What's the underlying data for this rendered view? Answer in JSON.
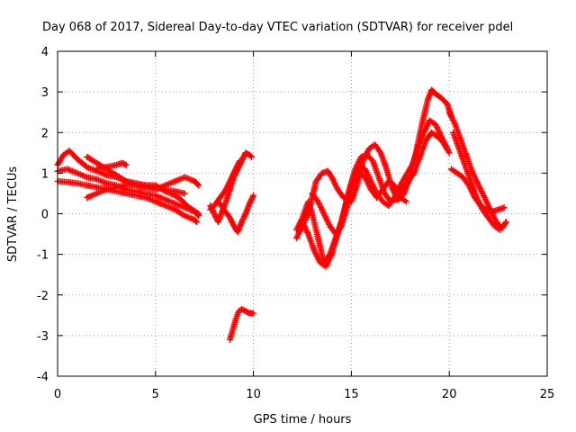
{
  "chart_data": {
    "type": "scatter",
    "title": "Day 068 of 2017, Sidereal Day-to-day VTEC variation (SDTVAR) for receiver pdel",
    "xlabel": "GPS time / hours",
    "ylabel": "SDTVAR / TECUs",
    "xlim": [
      0,
      25
    ],
    "ylim": [
      -4,
      4
    ],
    "xticks": [
      0,
      5,
      10,
      15,
      20,
      25
    ],
    "yticks": [
      -4,
      -3,
      -2,
      -1,
      0,
      1,
      2,
      3,
      4
    ],
    "grid": true,
    "marker": "+",
    "color": "#ff0000",
    "series": [
      {
        "name": "trace-1",
        "points": [
          [
            0.0,
            1.2
          ],
          [
            0.3,
            1.45
          ],
          [
            0.6,
            1.55
          ],
          [
            1.0,
            1.35
          ],
          [
            1.5,
            1.15
          ],
          [
            2.0,
            1.05
          ],
          [
            2.5,
            0.95
          ],
          [
            3.0,
            0.9
          ],
          [
            3.5,
            0.8
          ],
          [
            4.0,
            0.75
          ],
          [
            4.5,
            0.7
          ],
          [
            5.0,
            0.7
          ],
          [
            5.5,
            0.55
          ],
          [
            6.0,
            0.45
          ],
          [
            6.3,
            0.35
          ],
          [
            6.6,
            0.2
          ],
          [
            6.9,
            0.1
          ],
          [
            7.2,
            0.0
          ]
        ]
      },
      {
        "name": "trace-2",
        "points": [
          [
            0.0,
            1.05
          ],
          [
            0.5,
            1.1
          ],
          [
            1.0,
            1.0
          ],
          [
            1.5,
            0.9
          ],
          [
            2.0,
            0.85
          ],
          [
            2.5,
            0.75
          ],
          [
            3.0,
            0.7
          ],
          [
            3.5,
            0.6
          ],
          [
            4.0,
            0.55
          ],
          [
            4.5,
            0.5
          ],
          [
            5.0,
            0.45
          ],
          [
            5.5,
            0.35
          ],
          [
            6.0,
            0.25
          ],
          [
            6.5,
            0.15
          ],
          [
            7.0,
            0.05
          ],
          [
            7.2,
            -0.05
          ]
        ]
      },
      {
        "name": "trace-3",
        "points": [
          [
            0.0,
            0.8
          ],
          [
            0.5,
            0.78
          ],
          [
            1.0,
            0.75
          ],
          [
            1.5,
            0.7
          ],
          [
            2.0,
            0.65
          ],
          [
            2.5,
            0.6
          ],
          [
            3.0,
            0.55
          ],
          [
            3.5,
            0.5
          ],
          [
            4.0,
            0.45
          ],
          [
            4.5,
            0.4
          ],
          [
            5.0,
            0.3
          ],
          [
            5.5,
            0.2
          ],
          [
            6.0,
            0.1
          ],
          [
            6.5,
            -0.05
          ],
          [
            7.0,
            -0.15
          ],
          [
            7.1,
            -0.2
          ]
        ]
      },
      {
        "name": "trace-4",
        "points": [
          [
            1.5,
            1.4
          ],
          [
            2.0,
            1.25
          ],
          [
            2.5,
            1.1
          ],
          [
            3.0,
            0.95
          ],
          [
            3.5,
            0.8
          ],
          [
            4.0,
            0.7
          ],
          [
            4.5,
            0.65
          ],
          [
            5.0,
            0.6
          ],
          [
            5.5,
            0.7
          ],
          [
            6.0,
            0.8
          ],
          [
            6.5,
            0.9
          ],
          [
            7.0,
            0.8
          ],
          [
            7.2,
            0.7
          ]
        ]
      },
      {
        "name": "trace-5",
        "points": [
          [
            1.5,
            0.4
          ],
          [
            2.0,
            0.5
          ],
          [
            2.5,
            0.6
          ],
          [
            3.0,
            0.65
          ],
          [
            3.5,
            0.7
          ],
          [
            4.0,
            0.72
          ],
          [
            4.5,
            0.68
          ],
          [
            5.0,
            0.65
          ],
          [
            5.5,
            0.6
          ],
          [
            6.0,
            0.55
          ],
          [
            6.5,
            0.5
          ]
        ]
      },
      {
        "name": "trace-6",
        "points": [
          [
            2.0,
            1.1
          ],
          [
            2.5,
            1.15
          ],
          [
            3.0,
            1.2
          ],
          [
            3.3,
            1.25
          ],
          [
            3.5,
            1.2
          ]
        ]
      },
      {
        "name": "trace-7",
        "points": [
          [
            7.8,
            0.2
          ],
          [
            8.0,
            0.0
          ],
          [
            8.2,
            -0.2
          ],
          [
            8.4,
            0.05
          ],
          [
            8.6,
            0.3
          ],
          [
            8.8,
            0.6
          ],
          [
            9.0,
            0.9
          ],
          [
            9.2,
            1.1
          ],
          [
            9.4,
            1.3
          ],
          [
            9.6,
            1.5
          ],
          [
            9.8,
            1.45
          ],
          [
            9.9,
            1.4
          ]
        ]
      },
      {
        "name": "trace-8",
        "points": [
          [
            7.8,
            0.1
          ],
          [
            8.0,
            0.2
          ],
          [
            8.3,
            0.4
          ],
          [
            8.6,
            0.6
          ],
          [
            8.8,
            0.8
          ],
          [
            9.0,
            1.0
          ],
          [
            9.2,
            1.2
          ],
          [
            9.3,
            1.3
          ]
        ]
      },
      {
        "name": "trace-9",
        "points": [
          [
            8.2,
            0.3
          ],
          [
            8.5,
            0.1
          ],
          [
            8.8,
            -0.1
          ],
          [
            9.0,
            -0.3
          ],
          [
            9.2,
            -0.45
          ],
          [
            9.4,
            -0.2
          ],
          [
            9.6,
            0.0
          ],
          [
            9.8,
            0.25
          ],
          [
            10.0,
            0.45
          ]
        ]
      },
      {
        "name": "trace-10",
        "points": [
          [
            8.8,
            -3.1
          ],
          [
            8.95,
            -2.85
          ],
          [
            9.1,
            -2.6
          ],
          [
            9.25,
            -2.4
          ],
          [
            9.4,
            -2.35
          ],
          [
            9.6,
            -2.4
          ],
          [
            9.8,
            -2.45
          ],
          [
            10.0,
            -2.45
          ]
        ]
      },
      {
        "name": "trace-11",
        "points": [
          [
            12.2,
            -0.6
          ],
          [
            12.5,
            -0.3
          ],
          [
            12.8,
            0.0
          ],
          [
            13.0,
            0.4
          ],
          [
            13.2,
            0.8
          ],
          [
            13.5,
            1.0
          ],
          [
            13.8,
            1.05
          ],
          [
            14.0,
            0.9
          ],
          [
            14.3,
            0.6
          ],
          [
            14.6,
            0.4
          ],
          [
            15.0,
            0.3
          ],
          [
            15.3,
            0.7
          ],
          [
            15.6,
            1.3
          ],
          [
            15.9,
            1.6
          ],
          [
            16.2,
            1.7
          ],
          [
            16.5,
            1.5
          ],
          [
            16.8,
            1.1
          ],
          [
            17.1,
            0.6
          ],
          [
            17.4,
            0.35
          ],
          [
            17.7,
            0.5
          ],
          [
            18.0,
            0.9
          ],
          [
            18.3,
            1.5
          ],
          [
            18.6,
            2.2
          ],
          [
            18.9,
            2.8
          ],
          [
            19.1,
            3.05
          ],
          [
            19.3,
            2.95
          ],
          [
            19.6,
            2.85
          ],
          [
            19.9,
            2.7
          ],
          [
            20.1,
            2.4
          ]
        ]
      },
      {
        "name": "trace-12",
        "points": [
          [
            12.2,
            -0.4
          ],
          [
            12.5,
            -0.1
          ],
          [
            12.8,
            0.3
          ],
          [
            13.0,
            0.0
          ],
          [
            13.3,
            -0.6
          ],
          [
            13.6,
            -1.2
          ],
          [
            13.9,
            -1.0
          ],
          [
            14.2,
            -0.6
          ],
          [
            14.5,
            -0.2
          ],
          [
            14.8,
            0.4
          ],
          [
            15.1,
            0.9
          ],
          [
            15.4,
            1.2
          ],
          [
            15.7,
            1.1
          ],
          [
            16.0,
            0.8
          ],
          [
            16.3,
            0.5
          ],
          [
            16.6,
            0.3
          ],
          [
            16.9,
            0.2
          ],
          [
            17.2,
            0.4
          ],
          [
            17.5,
            0.7
          ],
          [
            17.8,
            0.95
          ],
          [
            18.1,
            1.2
          ],
          [
            18.4,
            1.6
          ],
          [
            18.7,
            2.0
          ],
          [
            19.0,
            2.3
          ],
          [
            19.3,
            2.2
          ],
          [
            19.6,
            1.9
          ],
          [
            19.9,
            1.6
          ]
        ]
      },
      {
        "name": "trace-13",
        "points": [
          [
            12.5,
            -0.2
          ],
          [
            12.8,
            -0.5
          ],
          [
            13.1,
            -0.9
          ],
          [
            13.4,
            -1.2
          ],
          [
            13.7,
            -1.3
          ],
          [
            14.0,
            -1.0
          ],
          [
            14.3,
            -0.5
          ],
          [
            14.6,
            0.0
          ],
          [
            14.9,
            0.6
          ],
          [
            15.2,
            1.1
          ],
          [
            15.5,
            1.4
          ],
          [
            15.8,
            1.45
          ],
          [
            16.1,
            1.3
          ],
          [
            16.4,
            0.9
          ],
          [
            16.7,
            0.5
          ],
          [
            17.0,
            0.3
          ],
          [
            17.3,
            0.35
          ],
          [
            17.6,
            0.6
          ],
          [
            17.9,
            0.8
          ],
          [
            18.2,
            1.0
          ],
          [
            18.5,
            1.4
          ],
          [
            18.8,
            1.8
          ],
          [
            19.1,
            2.0
          ],
          [
            19.4,
            1.9
          ],
          [
            19.7,
            1.75
          ],
          [
            20.0,
            1.5
          ]
        ]
      },
      {
        "name": "trace-14",
        "points": [
          [
            13.0,
            0.5
          ],
          [
            13.3,
            0.3
          ],
          [
            13.6,
            0.0
          ],
          [
            13.9,
            -0.3
          ],
          [
            14.2,
            -0.5
          ],
          [
            14.5,
            -0.3
          ],
          [
            14.8,
            0.2
          ],
          [
            15.1,
            0.7
          ],
          [
            15.4,
            1.0
          ],
          [
            15.7,
            0.9
          ],
          [
            16.0,
            0.6
          ],
          [
            16.3,
            0.4
          ],
          [
            16.6,
            0.6
          ],
          [
            16.9,
            0.8
          ],
          [
            17.2,
            0.7
          ],
          [
            17.5,
            0.4
          ],
          [
            17.8,
            0.3
          ]
        ]
      },
      {
        "name": "trace-15",
        "points": [
          [
            20.0,
            2.5
          ],
          [
            20.3,
            2.2
          ],
          [
            20.6,
            1.8
          ],
          [
            20.9,
            1.4
          ],
          [
            21.2,
            1.0
          ],
          [
            21.5,
            0.7
          ],
          [
            21.8,
            0.4
          ],
          [
            22.1,
            0.1
          ],
          [
            22.4,
            -0.2
          ],
          [
            22.7,
            -0.35
          ],
          [
            22.9,
            -0.2
          ]
        ]
      },
      {
        "name": "trace-16",
        "points": [
          [
            20.1,
            1.1
          ],
          [
            20.4,
            1.0
          ],
          [
            20.7,
            0.9
          ],
          [
            21.0,
            0.7
          ],
          [
            21.3,
            0.4
          ],
          [
            21.6,
            0.2
          ],
          [
            21.9,
            0.1
          ],
          [
            22.2,
            0.05
          ],
          [
            22.5,
            0.1
          ],
          [
            22.8,
            0.15
          ]
        ]
      },
      {
        "name": "trace-17",
        "points": [
          [
            20.2,
            2.0
          ],
          [
            20.5,
            1.6
          ],
          [
            20.8,
            1.2
          ],
          [
            21.1,
            0.8
          ],
          [
            21.4,
            0.4
          ],
          [
            21.7,
            0.1
          ],
          [
            22.0,
            -0.1
          ],
          [
            22.3,
            -0.3
          ],
          [
            22.6,
            -0.4
          ]
        ]
      }
    ]
  }
}
